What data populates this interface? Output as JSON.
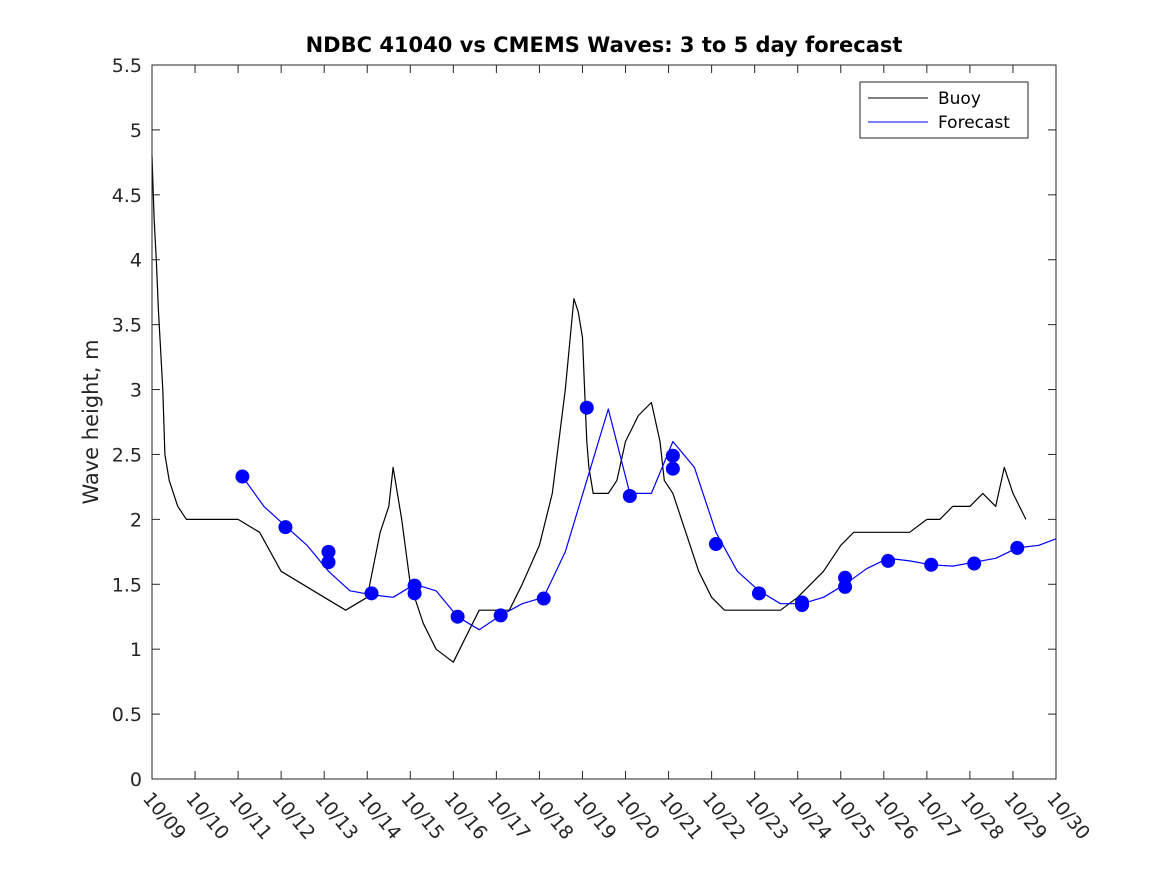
{
  "chart_data": {
    "type": "line",
    "title": "NDBC 41040 vs CMEMS Waves: 3 to 5 day forecast",
    "xlabel": "",
    "ylabel": "Wave height, m",
    "ylim": [
      0,
      5.5
    ],
    "xlim": [
      0,
      21
    ],
    "yticks": [
      0,
      0.5,
      1,
      1.5,
      2,
      2.5,
      3,
      3.5,
      4,
      4.5,
      5,
      5.5
    ],
    "ytick_labels": [
      "0",
      "0.5",
      "1",
      "1.5",
      "2",
      "2.5",
      "3",
      "3.5",
      "4",
      "4.5",
      "5",
      "5.5"
    ],
    "xtick_labels": [
      "10/09",
      "10/10",
      "10/11",
      "10/12",
      "10/13",
      "10/14",
      "10/15",
      "10/16",
      "10/17",
      "10/18",
      "10/19",
      "10/20",
      "10/21",
      "10/22",
      "10/23",
      "10/24",
      "10/25",
      "10/26",
      "10/27",
      "10/28",
      "10/29",
      "10/30"
    ],
    "x_units": "days since 10/09",
    "legend": {
      "position": "top-right",
      "entries": [
        "Buoy",
        "Forecast"
      ]
    },
    "colors": {
      "buoy": "#000000",
      "forecast": "#0000ff"
    },
    "series": [
      {
        "name": "Buoy",
        "color": "#000000",
        "x": [
          0.0,
          0.05,
          0.1,
          0.15,
          0.25,
          0.3,
          0.4,
          0.6,
          0.8,
          1.0,
          1.5,
          2.0,
          2.5,
          3.0,
          3.5,
          4.0,
          4.5,
          5.0,
          5.3,
          5.5,
          5.6,
          5.8,
          6.0,
          6.3,
          6.6,
          6.8,
          7.0,
          7.3,
          7.6,
          7.8,
          8.0,
          8.3,
          8.6,
          9.0,
          9.3,
          9.6,
          9.8,
          9.9,
          10.0,
          10.05,
          10.1,
          10.15,
          10.25,
          10.4,
          10.6,
          10.8,
          11.0,
          11.3,
          11.6,
          11.8,
          11.9,
          12.1,
          12.3,
          12.5,
          12.7,
          13.0,
          13.3,
          13.6,
          14.0,
          14.3,
          14.6,
          15.0,
          15.3,
          15.6,
          16.0,
          16.3,
          16.6,
          17.0,
          17.3,
          17.6,
          18.0,
          18.3,
          18.6,
          19.0,
          19.3,
          19.6,
          19.8,
          20.0,
          20.3
        ],
        "y": [
          4.8,
          4.3,
          4.0,
          3.6,
          3.0,
          2.5,
          2.3,
          2.1,
          2.0,
          2.0,
          2.0,
          2.0,
          1.9,
          1.6,
          1.5,
          1.4,
          1.3,
          1.4,
          1.9,
          2.1,
          2.4,
          2.0,
          1.5,
          1.2,
          1.0,
          0.95,
          0.9,
          1.1,
          1.3,
          1.3,
          1.3,
          1.3,
          1.5,
          1.8,
          2.2,
          3.0,
          3.7,
          3.6,
          3.4,
          3.0,
          2.6,
          2.4,
          2.2,
          2.2,
          2.2,
          2.3,
          2.6,
          2.8,
          2.9,
          2.6,
          2.3,
          2.2,
          2.0,
          1.8,
          1.6,
          1.4,
          1.3,
          1.3,
          1.3,
          1.3,
          1.3,
          1.4,
          1.5,
          1.6,
          1.8,
          1.9,
          1.9,
          1.9,
          1.9,
          1.9,
          2.0,
          2.0,
          2.1,
          2.1,
          2.2,
          2.1,
          2.4,
          2.2,
          2.0
        ]
      },
      {
        "name": "Forecast",
        "color": "#0000ff",
        "x": [
          2.1,
          2.6,
          3.1,
          3.6,
          4.1,
          4.6,
          5.1,
          5.6,
          6.1,
          6.6,
          7.1,
          7.6,
          8.1,
          8.6,
          9.1,
          9.6,
          10.1,
          10.6,
          11.1,
          11.6,
          12.1,
          12.6,
          13.1,
          13.6,
          14.1,
          14.6,
          15.1,
          15.6,
          16.1,
          16.6,
          17.1,
          17.6,
          18.1,
          18.6,
          19.1,
          19.6,
          20.1,
          20.6,
          21.0
        ],
        "y": [
          2.33,
          2.1,
          1.95,
          1.8,
          1.6,
          1.45,
          1.42,
          1.4,
          1.5,
          1.45,
          1.25,
          1.15,
          1.26,
          1.35,
          1.4,
          1.75,
          2.3,
          2.85,
          2.2,
          2.2,
          2.6,
          2.4,
          1.9,
          1.6,
          1.45,
          1.35,
          1.35,
          1.4,
          1.5,
          1.62,
          1.7,
          1.68,
          1.65,
          1.64,
          1.67,
          1.7,
          1.78,
          1.8,
          1.85
        ]
      }
    ],
    "markers": {
      "name": "Forecast points",
      "x": [
        2.1,
        3.1,
        4.1,
        4.1,
        5.1,
        6.1,
        6.1,
        7.1,
        8.1,
        9.1,
        10.1,
        11.1,
        12.1,
        12.1,
        13.1,
        14.1,
        15.1,
        15.1,
        16.1,
        16.1,
        17.1,
        18.1,
        19.1,
        20.1
      ],
      "y": [
        2.33,
        1.94,
        1.75,
        1.67,
        1.43,
        1.49,
        1.43,
        1.25,
        1.26,
        1.39,
        2.86,
        2.18,
        2.49,
        2.39,
        1.81,
        1.43,
        1.36,
        1.34,
        1.55,
        1.48,
        1.68,
        1.65,
        1.66,
        1.78
      ]
    }
  }
}
